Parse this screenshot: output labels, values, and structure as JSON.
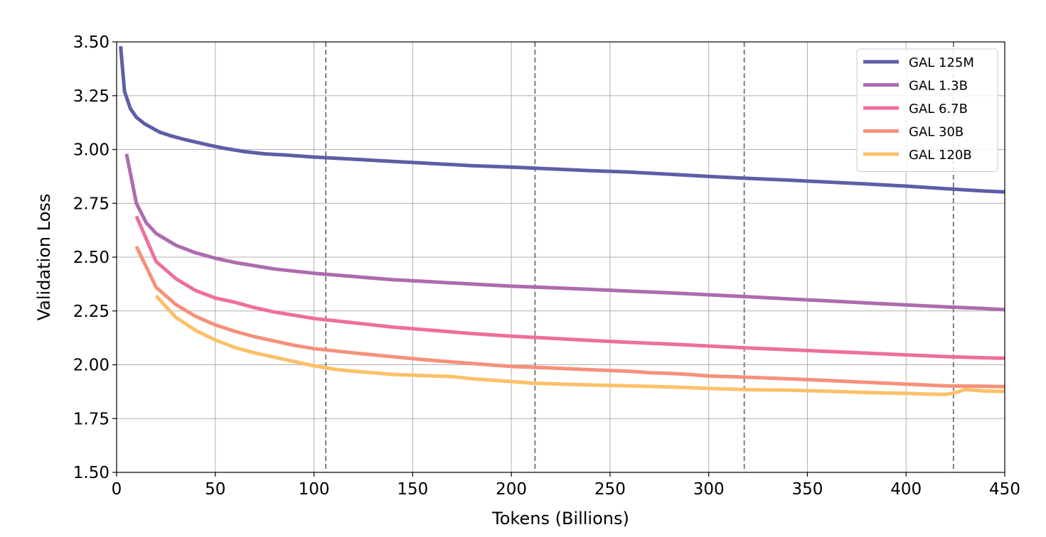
{
  "chart_data": {
    "type": "line",
    "title": "",
    "xlabel": "Tokens (Billions)",
    "ylabel": "Validation Loss",
    "xlim": [
      0,
      450
    ],
    "ylim": [
      1.5,
      3.5
    ],
    "xticks": [
      0,
      50,
      100,
      150,
      200,
      250,
      300,
      350,
      400,
      450
    ],
    "xtick_labels": [
      "0",
      "50",
      "100",
      "150",
      "200",
      "250",
      "300",
      "350",
      "400",
      "450"
    ],
    "yticks": [
      1.5,
      1.75,
      2.0,
      2.25,
      2.5,
      2.75,
      3.0,
      3.25,
      3.5
    ],
    "ytick_labels": [
      "1.50",
      "1.75",
      "2.00",
      "2.25",
      "2.50",
      "2.75",
      "3.00",
      "3.25",
      "3.50"
    ],
    "grid": true,
    "legend_position": "top-right",
    "epoch_boundaries": [
      106,
      212,
      318,
      424
    ],
    "series": [
      {
        "name": "GAL 125M",
        "color": "#5c5ea6",
        "x": [
          2,
          4,
          7,
          10,
          14,
          18,
          22,
          27,
          33,
          40,
          47,
          55,
          65,
          75,
          85,
          100,
          120,
          140,
          160,
          180,
          200,
          220,
          240,
          260,
          280,
          300,
          320,
          340,
          360,
          380,
          400,
          420,
          440,
          450
        ],
        "y": [
          3.48,
          3.27,
          3.19,
          3.15,
          3.12,
          3.1,
          3.08,
          3.065,
          3.05,
          3.035,
          3.02,
          3.005,
          2.99,
          2.98,
          2.975,
          2.965,
          2.955,
          2.945,
          2.935,
          2.925,
          2.918,
          2.91,
          2.902,
          2.895,
          2.885,
          2.875,
          2.866,
          2.858,
          2.849,
          2.84,
          2.83,
          2.818,
          2.807,
          2.803
        ]
      },
      {
        "name": "GAL 1.3B",
        "color": "#ad6bb0",
        "x": [
          5,
          10,
          15,
          20,
          30,
          40,
          50,
          60,
          70,
          80,
          90,
          100,
          120,
          140,
          160,
          180,
          200,
          220,
          240,
          260,
          280,
          300,
          320,
          340,
          360,
          380,
          400,
          420,
          440,
          450
        ],
        "y": [
          2.98,
          2.75,
          2.66,
          2.61,
          2.555,
          2.52,
          2.495,
          2.475,
          2.46,
          2.445,
          2.435,
          2.425,
          2.41,
          2.395,
          2.385,
          2.375,
          2.365,
          2.358,
          2.35,
          2.342,
          2.334,
          2.325,
          2.316,
          2.306,
          2.297,
          2.287,
          2.278,
          2.269,
          2.261,
          2.256
        ]
      },
      {
        "name": "GAL 6.7B",
        "color": "#ee7096",
        "x": [
          10,
          20,
          30,
          40,
          50,
          60,
          70,
          80,
          90,
          100,
          120,
          140,
          160,
          180,
          200,
          220,
          240,
          260,
          280,
          300,
          320,
          340,
          360,
          380,
          400,
          420,
          440,
          450
        ],
        "y": [
          2.69,
          2.48,
          2.4,
          2.345,
          2.31,
          2.29,
          2.265,
          2.245,
          2.23,
          2.215,
          2.195,
          2.175,
          2.16,
          2.145,
          2.133,
          2.123,
          2.113,
          2.104,
          2.096,
          2.087,
          2.078,
          2.07,
          2.062,
          2.054,
          2.046,
          2.038,
          2.032,
          2.03
        ]
      },
      {
        "name": "GAL 30B",
        "color": "#f5917a",
        "x": [
          10,
          20,
          30,
          40,
          50,
          60,
          70,
          80,
          90,
          100,
          120,
          140,
          160,
          180,
          200,
          220,
          240,
          260,
          270,
          280,
          290,
          300,
          320,
          340,
          360,
          380,
          400,
          420,
          440,
          450
        ],
        "y": [
          2.55,
          2.36,
          2.28,
          2.225,
          2.185,
          2.155,
          2.13,
          2.11,
          2.09,
          2.075,
          2.055,
          2.037,
          2.02,
          2.006,
          1.992,
          1.985,
          1.977,
          1.97,
          1.963,
          1.96,
          1.955,
          1.948,
          1.942,
          1.935,
          1.927,
          1.918,
          1.91,
          1.902,
          1.9,
          1.898
        ]
      },
      {
        "name": "GAL 120B",
        "color": "#fdc068",
        "x": [
          20,
          30,
          40,
          50,
          60,
          70,
          80,
          90,
          100,
          110,
          120,
          140,
          160,
          170,
          180,
          200,
          210,
          220,
          240,
          260,
          280,
          300,
          320,
          340,
          360,
          380,
          400,
          410,
          420,
          425,
          430,
          440,
          450
        ],
        "y": [
          2.32,
          2.22,
          2.16,
          2.115,
          2.08,
          2.055,
          2.035,
          2.015,
          1.995,
          1.98,
          1.97,
          1.955,
          1.948,
          1.945,
          1.935,
          1.922,
          1.915,
          1.912,
          1.906,
          1.902,
          1.897,
          1.89,
          1.884,
          1.882,
          1.877,
          1.871,
          1.867,
          1.864,
          1.862,
          1.87,
          1.885,
          1.878,
          1.876
        ]
      }
    ]
  }
}
